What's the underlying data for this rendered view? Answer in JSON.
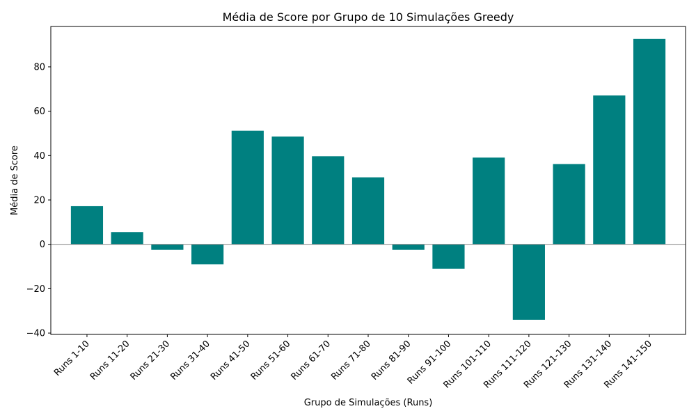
{
  "chart_data": {
    "type": "bar",
    "title": "Média de Score por Grupo de 10 Simulações Greedy",
    "xlabel": "Grupo de Simulações (Runs)",
    "ylabel": "Média de Score",
    "categories": [
      "Runs 1-10",
      "Runs 11-20",
      "Runs 21-30",
      "Runs 31-40",
      "Runs 41-50",
      "Runs 51-60",
      "Runs 61-70",
      "Runs 71-80",
      "Runs 81-90",
      "Runs 91-100",
      "Runs 101-110",
      "Runs 111-120",
      "Runs 121-130",
      "Runs 131-140",
      "Runs 141-150"
    ],
    "values": [
      17.2,
      5.5,
      -2.5,
      -9.0,
      51.2,
      48.6,
      39.7,
      30.2,
      -2.5,
      -11.0,
      39.1,
      -34.0,
      36.2,
      67.1,
      92.6
    ],
    "ylim": [
      -40.6,
      98.2
    ],
    "yticks": [
      -40,
      -20,
      0,
      20,
      40,
      60,
      80
    ],
    "bar_color": "#008080",
    "zero_line_color": "#808080",
    "grid": false
  }
}
